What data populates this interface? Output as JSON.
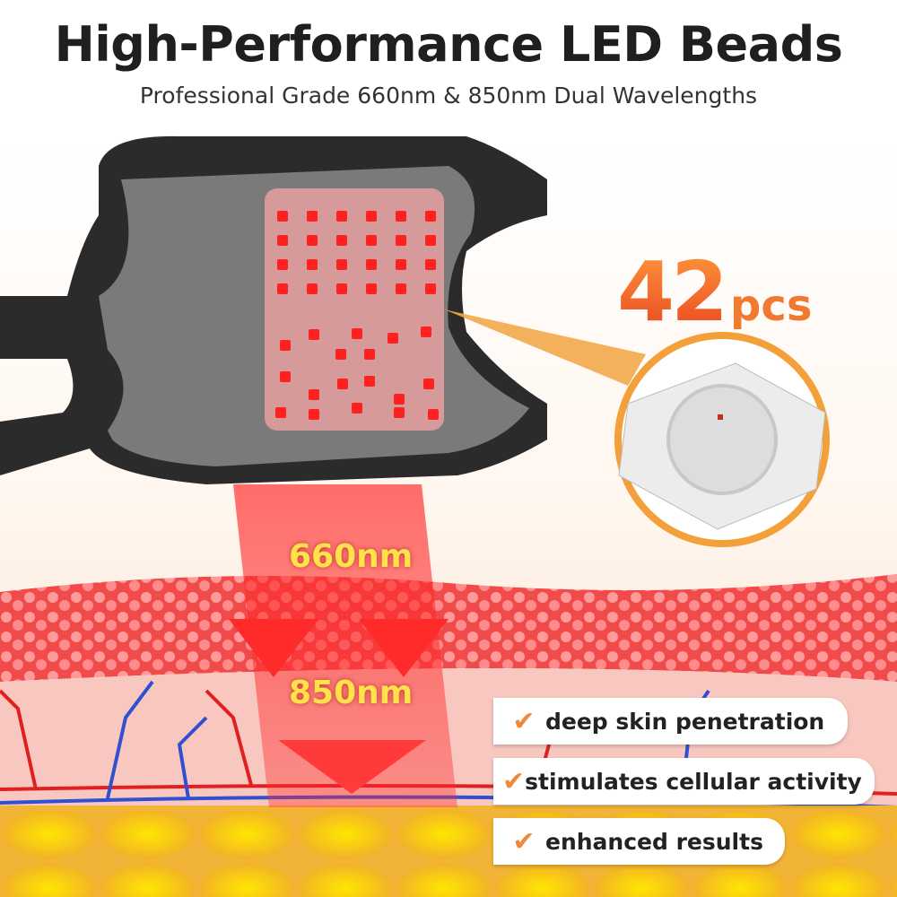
{
  "header": {
    "title": "High-Performance LED Beads",
    "subtitle": "Professional Grade 660nm & 850nm Dual Wavelengths"
  },
  "product": {
    "led_count": "42",
    "led_unit": "pcs"
  },
  "wavelengths": [
    "660nm",
    "850nm"
  ],
  "features": [
    {
      "icon": "checkmark-icon",
      "label": "deep skin penetration"
    },
    {
      "icon": "checkmark-icon",
      "label": "stimulates cellular activity"
    },
    {
      "icon": "checkmark-icon",
      "label": "enhanced results"
    }
  ],
  "colors": {
    "accent_orange": "#f05a28",
    "wavelength_text": "#ffe14a",
    "led_red": "#ff2020",
    "check": "#ef8a3c"
  }
}
